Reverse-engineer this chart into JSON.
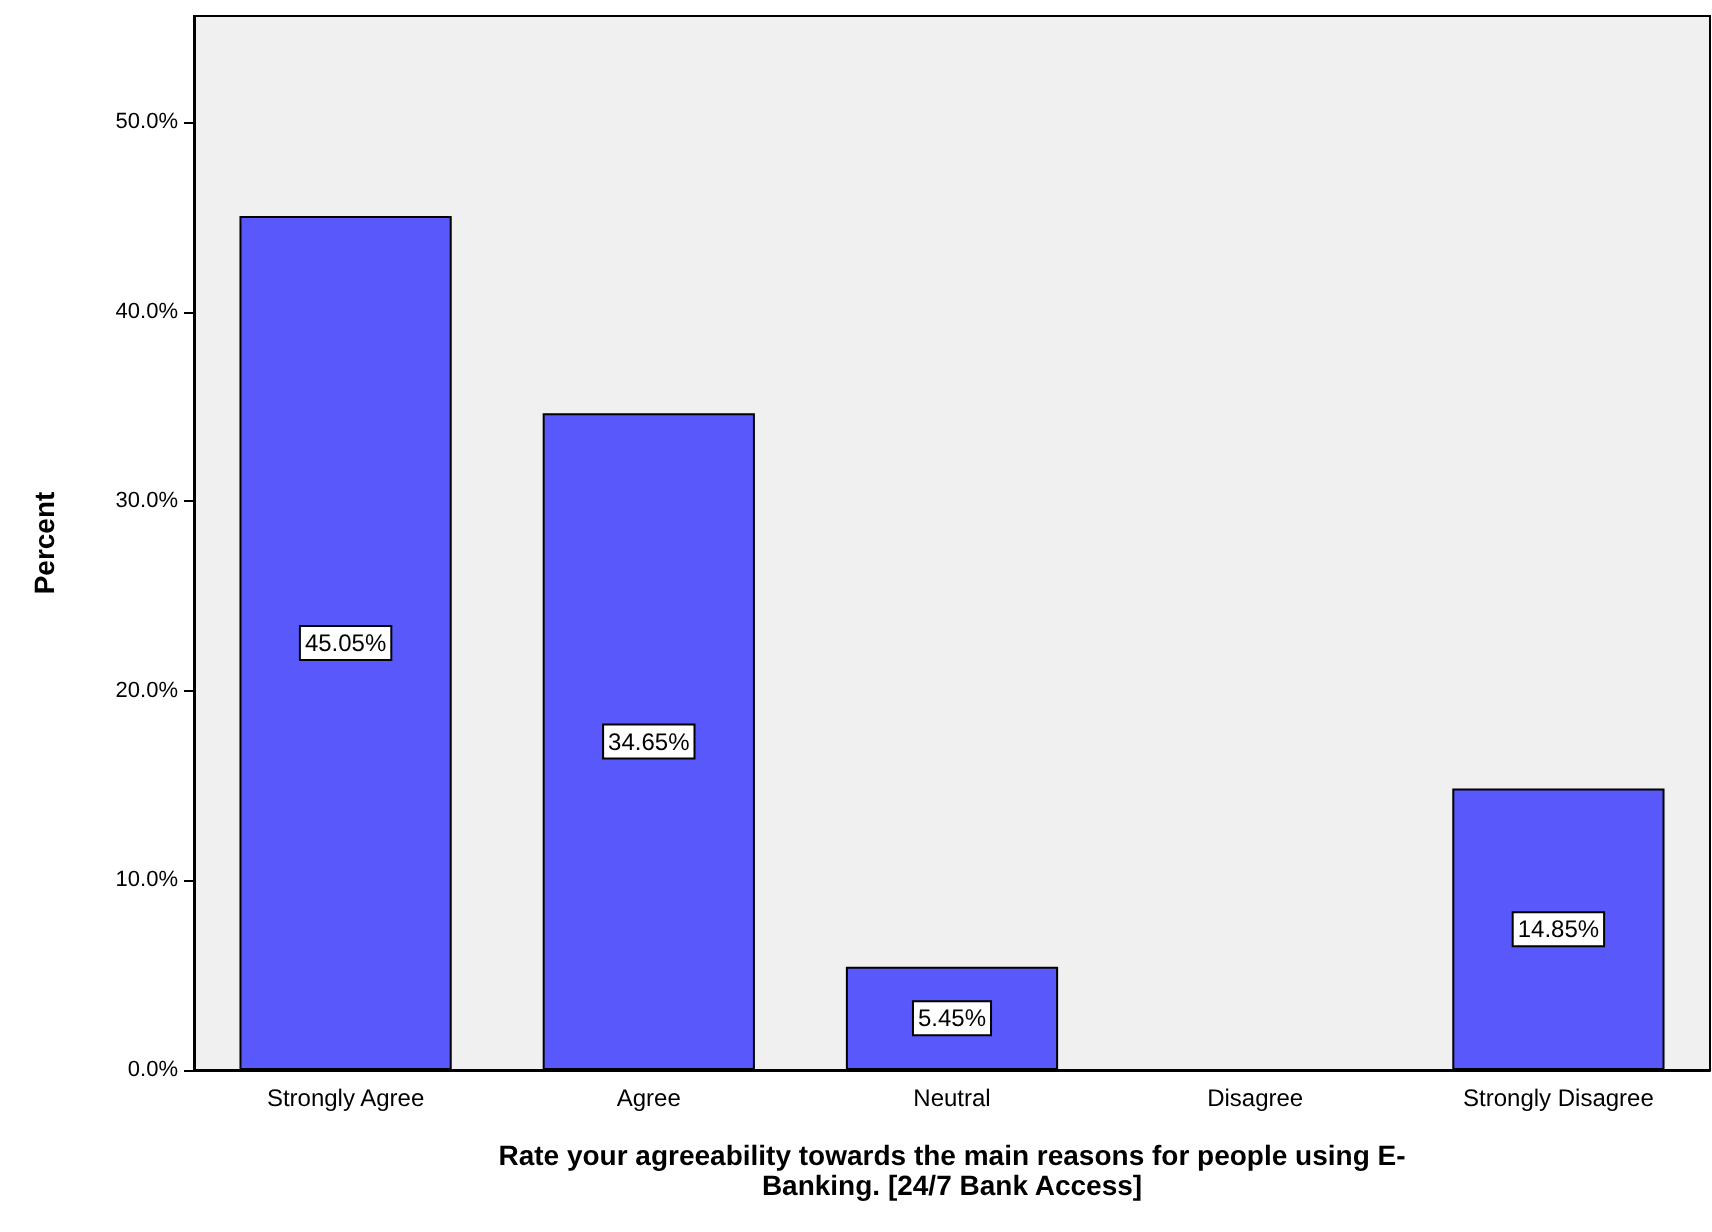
{
  "chart_data": {
    "type": "bar",
    "ylabel": "Percent",
    "xlabel": "Rate your agreeability towards the main reasons for people using E-\nBanking. [24/7 Bank Access]",
    "categories": [
      "Strongly Agree",
      "Agree",
      "Neutral",
      "Disagree",
      "Strongly Disagree"
    ],
    "values": [
      45.05,
      34.65,
      5.45,
      null,
      14.85
    ],
    "value_labels": [
      "45.05%",
      "34.65%",
      "5.45%",
      null,
      "14.85%"
    ],
    "color": "#5858fb",
    "ylim": [
      0,
      55.6
    ],
    "yticks": [
      {
        "value": 0,
        "label": "0.0%"
      },
      {
        "value": 10,
        "label": "10.0%"
      },
      {
        "value": 20,
        "label": "20.0%"
      },
      {
        "value": 30,
        "label": "30.0%"
      },
      {
        "value": 40,
        "label": "40.0%"
      },
      {
        "value": 50,
        "label": "50.0%"
      }
    ],
    "grid": false
  }
}
